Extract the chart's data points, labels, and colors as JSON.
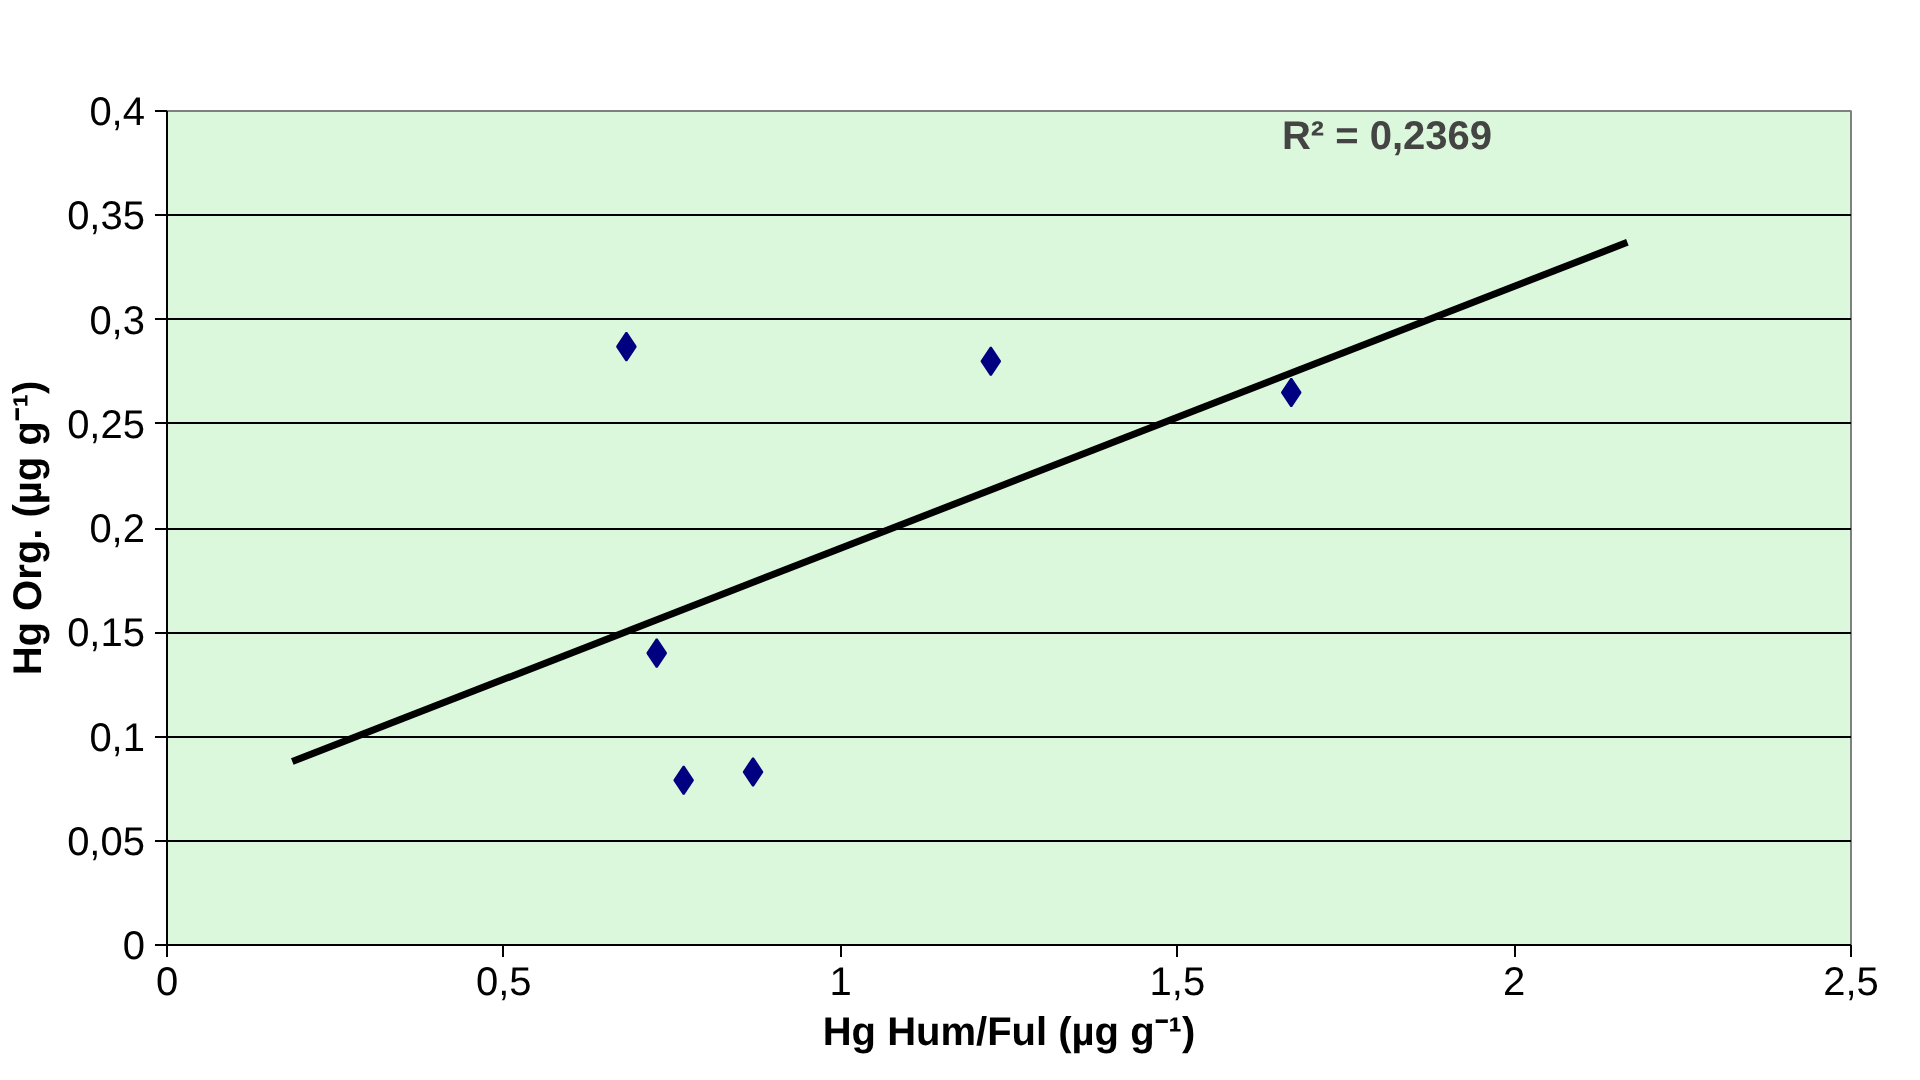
{
  "chart_data": {
    "type": "scatter",
    "xlabel": "Hg Hum/Ful (µg g⁻¹)",
    "ylabel": "Hg Org. (µg g⁻¹)",
    "annotations": [
      "R² = 0,2369"
    ],
    "series": [
      {
        "color": "#000080",
        "marker": "diamond",
        "x": [
          0.682,
          0.727,
          0.767,
          0.87,
          1.223,
          1.669
        ],
        "values": [
          0.287,
          0.14,
          0.079,
          0.083,
          0.28,
          0.265
        ]
      },
      {
        "type": "line",
        "color": "#000000",
        "marker": "none",
        "line_style": "solid",
        "x": [
          0.186,
          2.168
        ],
        "values": [
          0.088,
          0.337
        ]
      }
    ],
    "xlim": [
      0,
      2.5
    ],
    "ylim": [
      0,
      0.4
    ],
    "xticks": [
      0,
      {
        "value": 0.5,
        "label": "0,5"
      },
      1,
      {
        "value": 1.5,
        "label": "1,5"
      },
      2,
      {
        "value": 2.5,
        "label": "2,5"
      }
    ],
    "yticks": [
      0,
      {
        "value": 0.05,
        "label": "0,05"
      },
      {
        "value": 0.1,
        "label": "0,1"
      },
      {
        "value": 0.15,
        "label": "0,15"
      },
      {
        "value": 0.2,
        "label": "0,2"
      },
      {
        "value": 0.25,
        "label": "0,25"
      },
      {
        "value": 0.3,
        "label": "0,3"
      },
      {
        "value": 0.35,
        "label": "0,35"
      },
      {
        "value": 0.4,
        "label": "0,4"
      }
    ],
    "grid": "y"
  }
}
